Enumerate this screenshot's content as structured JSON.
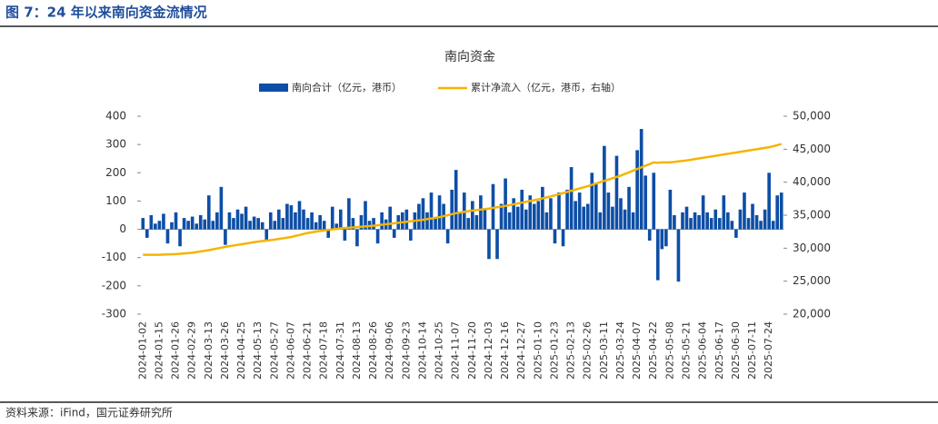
{
  "header": {
    "title": "图 7：24 年以来南向资金流情况"
  },
  "footer": {
    "source": "资料来源：iFind，国元证券研究所"
  },
  "chart_data": {
    "type": "bar-line",
    "title": "南向资金",
    "categories": [
      "2024-01-02",
      null,
      null,
      null,
      "2024-01-15",
      null,
      null,
      null,
      "2024-01-26",
      null,
      null,
      null,
      "2024-02-29",
      null,
      null,
      null,
      "2024-03-13",
      null,
      null,
      null,
      "2024-03-26",
      null,
      null,
      null,
      "2024-04-25",
      null,
      null,
      null,
      "2024-05-13",
      null,
      null,
      null,
      "2024-05-27",
      null,
      null,
      null,
      "2024-06-07",
      null,
      null,
      null,
      "2024-06-21",
      null,
      null,
      null,
      "2024-07-18",
      null,
      null,
      null,
      "2024-07-31",
      null,
      null,
      null,
      "2024-08-13",
      null,
      null,
      null,
      "2024-08-26",
      null,
      null,
      null,
      "2024-09-06",
      null,
      null,
      null,
      "2024-09-23",
      null,
      null,
      null,
      "2024-10-14",
      null,
      null,
      null,
      "2024-10-25",
      null,
      null,
      null,
      "2024-11-07",
      null,
      null,
      null,
      "2024-11-20",
      null,
      null,
      null,
      "2024-12-03",
      null,
      null,
      null,
      "2024-12-16",
      null,
      null,
      null,
      "2024-12-27",
      null,
      null,
      null,
      "2025-01-10",
      null,
      null,
      null,
      "2025-01-23",
      null,
      null,
      null,
      "2025-02-13",
      null,
      null,
      null,
      "2025-02-26",
      null,
      null,
      null,
      "2025-03-11",
      null,
      null,
      null,
      "2025-03-24",
      null,
      null,
      null,
      "2025-04-07",
      null,
      null,
      null,
      "2025-04-22",
      null,
      null,
      null,
      "2025-05-08",
      null,
      null,
      null,
      "2025-05-21",
      null,
      null,
      null,
      "2025-06-04",
      null,
      null,
      null,
      "2025-06-17",
      null,
      null,
      null,
      "2025-06-30",
      null,
      null,
      null,
      "2025-07-11",
      null,
      null,
      null,
      "2025-07-24",
      null,
      null,
      null
    ],
    "series": [
      {
        "name": "南向合计（亿元，港币）",
        "type": "bar",
        "color": "#0d4ea6",
        "values": [
          40,
          -30,
          50,
          20,
          30,
          55,
          -50,
          25,
          60,
          -60,
          40,
          30,
          45,
          20,
          50,
          35,
          120,
          30,
          60,
          150,
          -55,
          60,
          40,
          70,
          55,
          80,
          30,
          45,
          40,
          25,
          -40,
          60,
          30,
          70,
          40,
          90,
          85,
          60,
          100,
          70,
          40,
          60,
          25,
          50,
          30,
          -30,
          80,
          20,
          70,
          -40,
          110,
          40,
          -60,
          50,
          100,
          30,
          40,
          -50,
          60,
          35,
          80,
          -30,
          50,
          60,
          70,
          -40,
          60,
          90,
          110,
          60,
          130,
          40,
          120,
          90,
          -50,
          140,
          210,
          60,
          130,
          40,
          100,
          50,
          120,
          70,
          -105,
          160,
          -105,
          90,
          180,
          60,
          110,
          80,
          140,
          70,
          120,
          90,
          100,
          150,
          60,
          110,
          -50,
          130,
          -60,
          140,
          220,
          100,
          130,
          80,
          90,
          200,
          160,
          60,
          295,
          130,
          80,
          260,
          110,
          70,
          150,
          60,
          280,
          355,
          190,
          -40,
          200,
          -180,
          -70,
          -60,
          140,
          50,
          -185,
          60,
          80,
          40,
          60,
          50,
          120,
          60,
          40,
          70,
          40,
          120,
          60,
          30,
          -30,
          70,
          130,
          40,
          90,
          50,
          30,
          70,
          200,
          30,
          120,
          130
        ]
      },
      {
        "name": "累计净流入（亿元，港币，右轴）",
        "type": "line",
        "axis": "y2",
        "color": "#f5b400",
        "values": [
          29000,
          29000,
          29000,
          29000,
          29000,
          29025,
          29050,
          29075,
          29100,
          29150,
          29200,
          29250,
          29300,
          29400,
          29500,
          29600,
          29700,
          29825,
          29950,
          30075,
          30200,
          30300,
          30400,
          30500,
          30600,
          30700,
          30800,
          30900,
          31000,
          31075,
          31150,
          31225,
          31300,
          31400,
          31500,
          31600,
          31700,
          31850,
          32000,
          32150,
          32300,
          32400,
          32500,
          32600,
          32700,
          32775,
          32850,
          32925,
          33000,
          33050,
          33100,
          33150,
          33200,
          33250,
          33300,
          33350,
          33400,
          33475,
          33550,
          33625,
          33700,
          33775,
          33850,
          33925,
          34000,
          34075,
          34150,
          34225,
          34300,
          34400,
          34500,
          34600,
          34700,
          34850,
          35000,
          35150,
          35300,
          35400,
          35500,
          35600,
          35700,
          35775,
          35850,
          35925,
          36000,
          36100,
          36200,
          36300,
          36400,
          36525,
          36650,
          36775,
          36900,
          37025,
          37150,
          37275,
          37400,
          37550,
          37700,
          37850,
          38000,
          38175,
          38350,
          38525,
          38700,
          38875,
          39050,
          39225,
          39400,
          39600,
          39800,
          40000,
          40200,
          40400,
          40600,
          40800,
          41000,
          41250,
          41500,
          41750,
          42000,
          42250,
          42500,
          42750,
          43000,
          42950,
          43000,
          43000,
          43000,
          43075,
          43150,
          43225,
          43300,
          43400,
          43500,
          43600,
          43700,
          43800,
          43900,
          44000,
          44100,
          44200,
          44300,
          44400,
          44500,
          44600,
          44700,
          44800,
          44900,
          45000,
          45100,
          45200,
          45300,
          45450,
          45600,
          45800
        ]
      }
    ],
    "ylim": [
      -300,
      400
    ],
    "yticks": [
      -300,
      -200,
      -100,
      0,
      100,
      200,
      300,
      400
    ],
    "y2lim": [
      20000,
      50000
    ],
    "y2ticks": [
      {
        "value": 20000,
        "label": "20,000"
      },
      {
        "value": 25000,
        "label": "25,000"
      },
      {
        "value": 30000,
        "label": "30,000"
      },
      {
        "value": 35000,
        "label": "35,000"
      },
      {
        "value": 40000,
        "label": "40,000"
      },
      {
        "value": 45000,
        "label": "45,000"
      },
      {
        "value": 50000,
        "label": "50,000"
      }
    ],
    "grid": false
  }
}
